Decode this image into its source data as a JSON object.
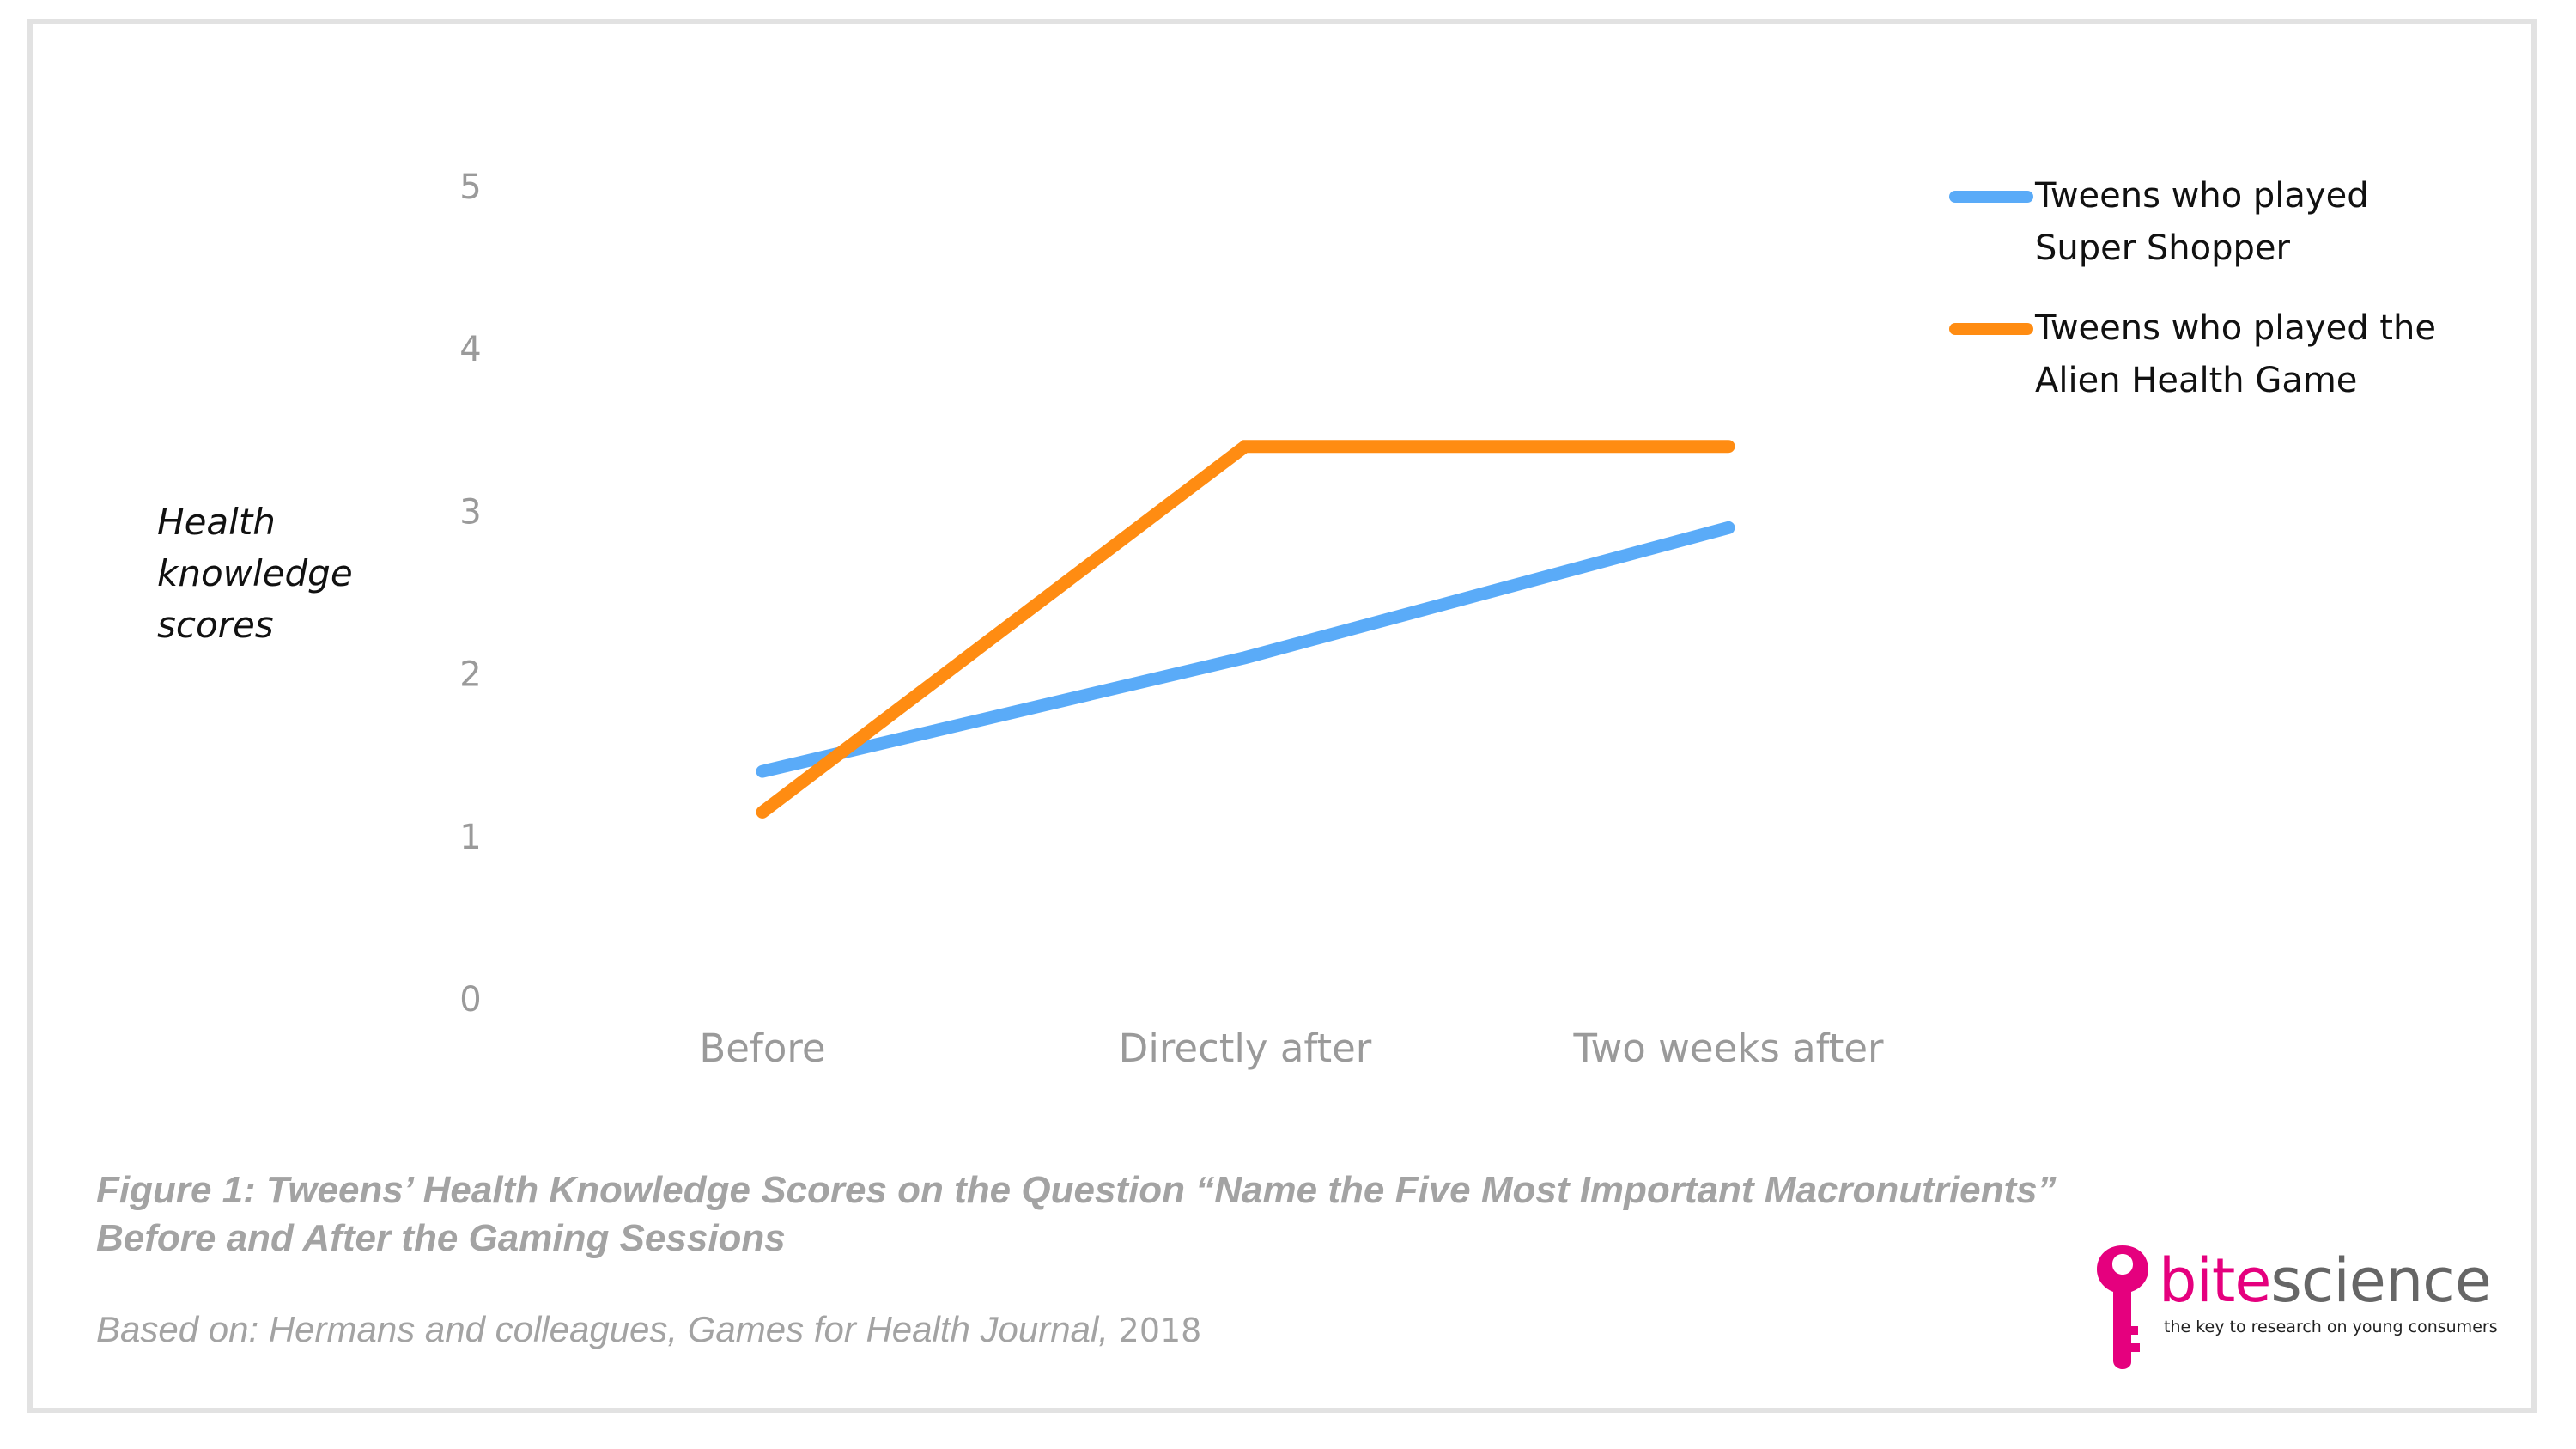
{
  "chart_data": {
    "type": "line",
    "title": "",
    "xlabel": "",
    "ylabel": "Health\nknowledge\nscores",
    "categories": [
      "Before",
      "Directly after",
      "Two weeks after"
    ],
    "ylim": [
      0,
      5
    ],
    "yticks": [
      0,
      1,
      2,
      3,
      4,
      5
    ],
    "grid": false,
    "legend_position": "top-right",
    "series": [
      {
        "name": "Tweens who played\nSuper Shopper",
        "values": [
          1.4,
          2.1,
          2.9
        ],
        "color": "#5aabf8"
      },
      {
        "name": "Tweens who played the\nAlien Health Game",
        "values": [
          1.15,
          3.4,
          3.4
        ],
        "color": "#ff8c12"
      }
    ]
  },
  "caption": {
    "title": "Figure 1: Tweens’ Health Knowledge Scores on the Question “Name the Five Most Important Macronutrients”\nBefore and After the Gaming Sessions",
    "source_prefix": "Based on: Hermans and colleagues, Games for Health Journal,",
    "source_year": "2018"
  },
  "logo": {
    "word_part1": "bite",
    "word_part2": "science",
    "tagline": "the key to research on young consumers",
    "color_primary": "#e5007e",
    "color_secondary": "#666666"
  },
  "colors": {
    "axis_text": "#9a9a9a",
    "caption_text": "#a3a3a3",
    "frame": "#e2e2e2"
  }
}
